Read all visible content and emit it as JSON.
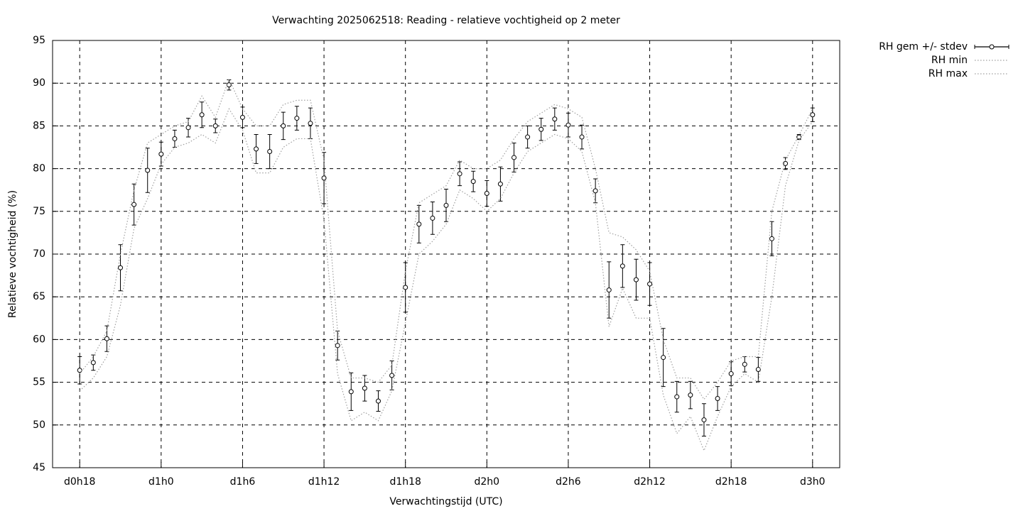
{
  "chart_data": {
    "type": "line",
    "title": "Verwachting 2025062518: Reading - relatieve vochtigheid op 2 meter",
    "x_label": "Verwachtingstijd (UTC)",
    "y_label": "Relatieve vochtigheid (%)",
    "x": [
      18,
      19,
      20,
      21,
      22,
      23,
      24,
      25,
      26,
      27,
      28,
      29,
      30,
      31,
      32,
      33,
      34,
      35,
      36,
      37,
      38,
      39,
      40,
      41,
      42,
      43,
      44,
      45,
      46,
      47,
      48,
      49,
      50,
      51,
      52,
      53,
      54,
      55,
      56,
      57,
      58,
      59,
      60,
      61,
      62,
      63,
      64,
      65,
      66,
      67,
      68,
      69,
      70,
      71,
      72
    ],
    "xlim": [
      16,
      74
    ],
    "xticks": [
      {
        "value": 18,
        "label": "d0h18"
      },
      {
        "value": 24,
        "label": "d1h0"
      },
      {
        "value": 30,
        "label": "d1h6"
      },
      {
        "value": 36,
        "label": "d1h12"
      },
      {
        "value": 42,
        "label": "d1h18"
      },
      {
        "value": 48,
        "label": "d2h0"
      },
      {
        "value": 54,
        "label": "d2h6"
      },
      {
        "value": 60,
        "label": "d2h12"
      },
      {
        "value": 66,
        "label": "d2h18"
      },
      {
        "value": 72,
        "label": "d3h0"
      }
    ],
    "ylim": [
      45,
      95
    ],
    "yticks": [
      45,
      50,
      55,
      60,
      65,
      70,
      75,
      80,
      85,
      90,
      95
    ],
    "grid": true,
    "legend": "outside top right",
    "series": [
      {
        "name": "RH gem +/- stdev",
        "color": "#000000",
        "dash": "solid",
        "values": [
          56.4,
          57.3,
          60.1,
          68.4,
          75.8,
          79.8,
          81.7,
          83.5,
          84.8,
          86.3,
          85.0,
          89.8,
          86.0,
          82.3,
          82.0,
          85.0,
          85.9,
          85.3,
          78.9,
          59.3,
          53.9,
          54.3,
          52.8,
          55.8,
          66.1,
          73.5,
          74.2,
          75.7,
          79.4,
          78.5,
          77.1,
          78.2,
          81.3,
          83.7,
          84.6,
          85.8,
          85.1,
          83.7,
          77.4,
          65.8,
          68.6,
          67.0,
          66.5,
          57.9,
          53.3,
          53.5,
          50.6,
          53.1,
          56.0,
          57.1,
          56.5,
          71.8,
          80.6,
          83.7,
          86.3
        ],
        "errors": [
          1.6,
          0.9,
          1.5,
          2.7,
          2.4,
          2.6,
          1.4,
          1.0,
          1.1,
          1.5,
          0.8,
          0.6,
          1.2,
          1.7,
          2.0,
          1.6,
          1.4,
          1.8,
          3.0,
          1.7,
          2.2,
          1.5,
          1.2,
          1.7,
          2.9,
          2.2,
          1.9,
          1.9,
          1.4,
          1.2,
          1.5,
          2.0,
          1.7,
          1.3,
          1.3,
          1.3,
          1.4,
          1.4,
          1.4,
          3.3,
          2.5,
          2.4,
          2.5,
          3.4,
          1.8,
          1.6,
          1.9,
          1.4,
          1.4,
          0.9,
          1.4,
          2.0,
          0.7,
          0.3,
          0.8
        ]
      },
      {
        "name": "RH min",
        "color": "#a0a0a0",
        "dash": "dotted",
        "values": [
          54.0,
          55.5,
          58.0,
          64,
          73,
          76.5,
          80.5,
          82.5,
          83.0,
          84.0,
          83.0,
          87.0,
          84.5,
          79.5,
          79.5,
          82.5,
          83.5,
          83.5,
          74,
          56,
          50.5,
          51.5,
          50.5,
          54,
          62,
          70,
          71.5,
          73.5,
          77.5,
          76.5,
          75,
          76.5,
          79.5,
          82,
          83,
          84,
          83.5,
          82,
          76,
          61.5,
          66,
          62.5,
          62.5,
          53.5,
          49,
          51,
          47,
          51,
          54.5,
          56,
          55,
          65,
          78,
          83.3,
          85.5
        ]
      },
      {
        "name": "RH max",
        "color": "#a0a0a0",
        "dash": "dotted",
        "values": [
          56,
          58,
          61,
          70,
          77.5,
          83,
          84,
          85,
          85.5,
          88.5,
          86,
          90.5,
          87,
          85,
          85,
          87.5,
          88,
          88,
          81,
          61,
          55.5,
          55.5,
          55,
          57,
          68,
          76,
          77,
          78,
          81,
          80,
          80,
          81,
          83.5,
          85.5,
          86.5,
          87.5,
          87,
          86,
          80,
          72.5,
          72,
          70.5,
          68,
          60,
          55.5,
          55.5,
          53,
          55,
          57.5,
          58,
          58,
          75,
          81,
          83.9,
          87
        ]
      }
    ]
  }
}
